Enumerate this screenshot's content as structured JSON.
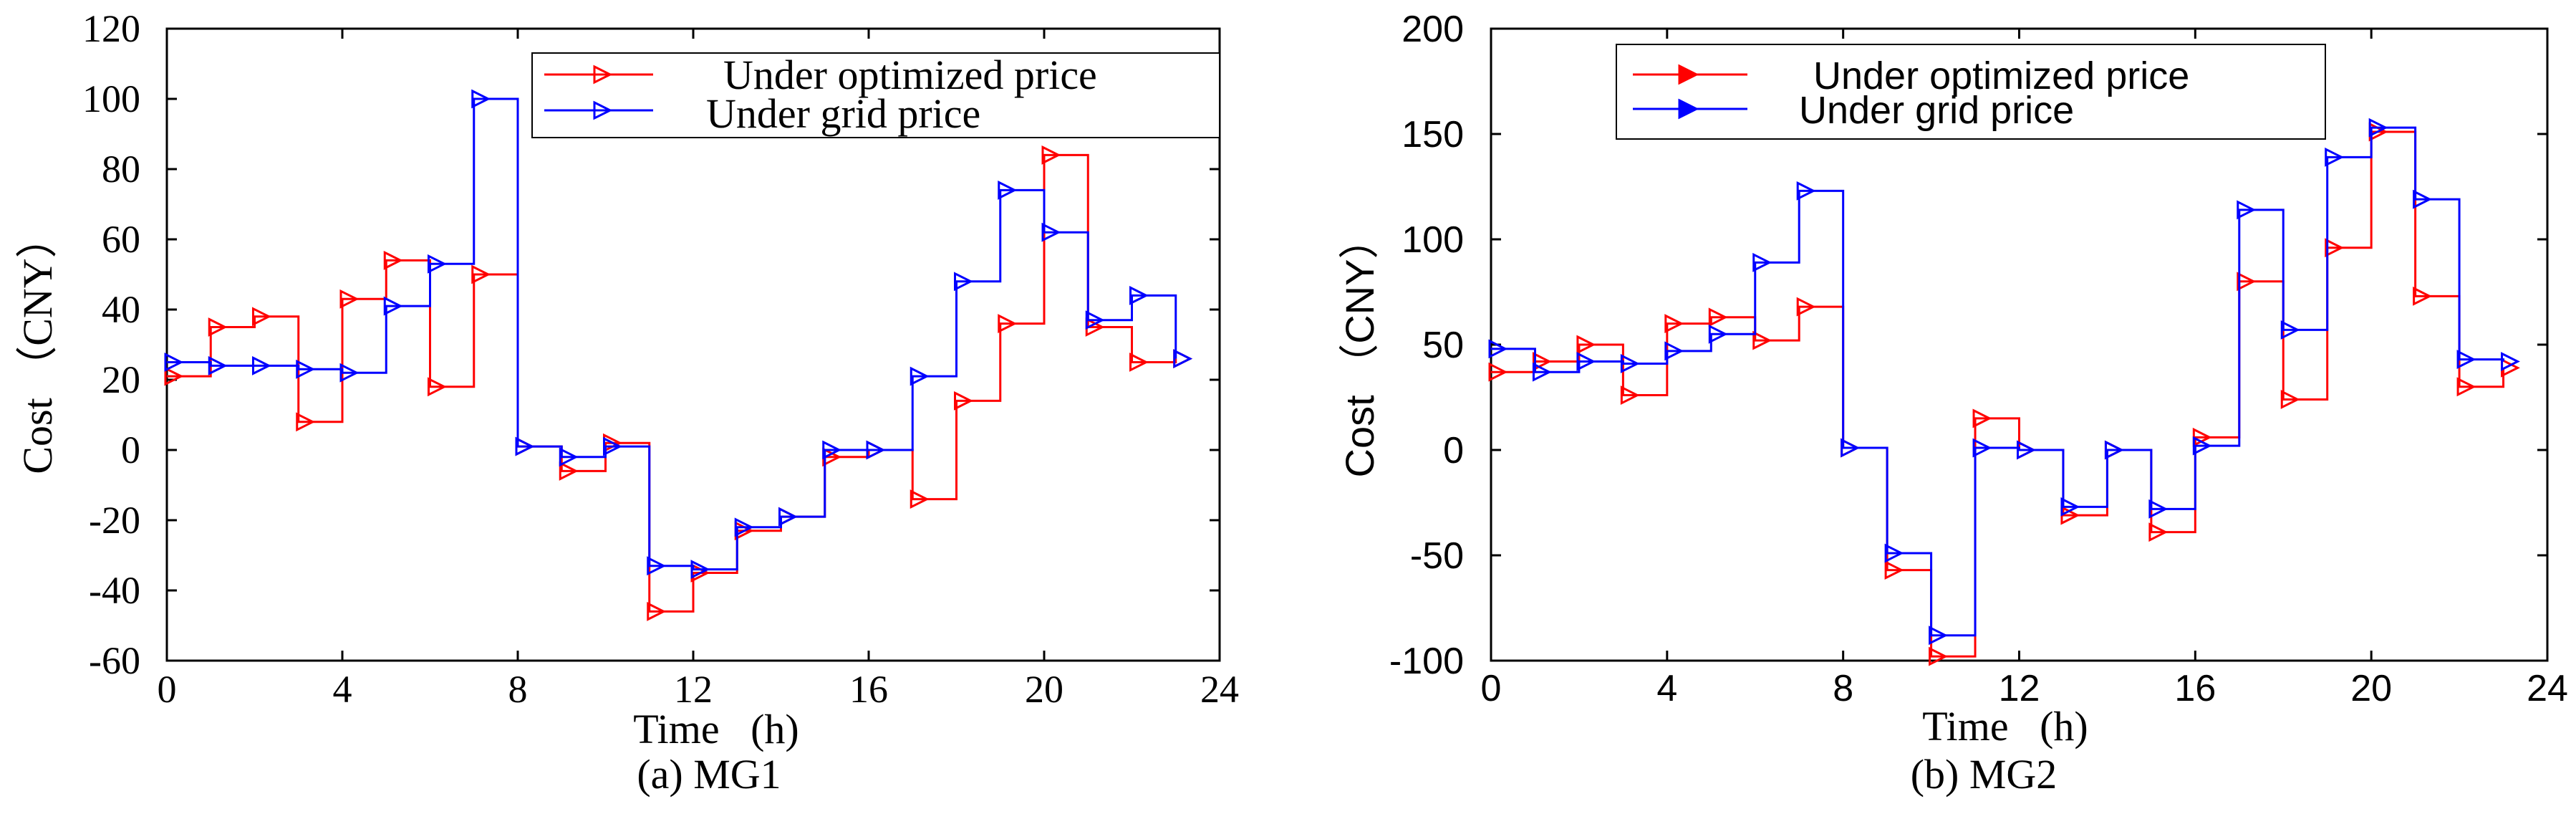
{
  "colors": {
    "optimized": "#ff0000",
    "grid": "#0000ff",
    "axis": "#000000",
    "background": "#ffffff"
  },
  "chart_data": [
    {
      "type": "line",
      "step": true,
      "marker": "triangle-right",
      "title": "(a) MG1",
      "xlabel": "Time   (h)",
      "ylabel": "Cost （CNY）",
      "xlim": [
        0,
        24
      ],
      "ylim": [
        -60,
        120
      ],
      "xticks": [
        0,
        4,
        8,
        12,
        16,
        20,
        24
      ],
      "yticks": [
        -60,
        -40,
        -20,
        0,
        20,
        40,
        60,
        80,
        100,
        120
      ],
      "xtick_labels": [
        "0",
        "4",
        "8",
        "12",
        "16",
        "20",
        "24"
      ],
      "ytick_labels": [
        "-60",
        "-40",
        "-20",
        "0",
        "20",
        "40",
        "60",
        "80",
        "100",
        "120"
      ],
      "legend_position": "top-right",
      "x": [
        0,
        1,
        2,
        3,
        4,
        5,
        6,
        7,
        8,
        9,
        10,
        11,
        12,
        13,
        14,
        15,
        16,
        17,
        18,
        19,
        20,
        21,
        22,
        23
      ],
      "series": [
        {
          "name": "Under optimized price",
          "color": "#ff0000",
          "values": [
            21,
            35,
            38,
            8,
            43,
            54,
            18,
            50,
            1,
            -6,
            2,
            -46,
            -35,
            -23,
            -19,
            -2,
            0,
            -14,
            14,
            36,
            84,
            35,
            25,
            26
          ]
        },
        {
          "name": "Under grid price",
          "color": "#0000ff",
          "values": [
            25,
            24,
            24,
            23,
            22,
            41,
            53,
            100,
            1,
            -2,
            1,
            -33,
            -34,
            -22,
            -19,
            0,
            0,
            21,
            48,
            74,
            62,
            37,
            44,
            26
          ]
        }
      ]
    },
    {
      "type": "line",
      "step": true,
      "marker": "triangle-right",
      "title": "(b) MG2",
      "xlabel": "Time   (h)",
      "ylabel": "Cost （CNY）",
      "xlim": [
        0,
        24
      ],
      "ylim": [
        -100,
        200
      ],
      "xticks": [
        0,
        4,
        8,
        12,
        16,
        20,
        24
      ],
      "yticks": [
        -100,
        -50,
        0,
        50,
        100,
        150,
        200
      ],
      "xtick_labels": [
        "0",
        "4",
        "8",
        "12",
        "16",
        "20",
        "24"
      ],
      "ytick_labels": [
        "-100",
        "-50",
        "0",
        "50",
        "100",
        "150",
        "200"
      ],
      "legend_position": "top-right",
      "x": [
        0,
        1,
        2,
        3,
        4,
        5,
        6,
        7,
        8,
        9,
        10,
        11,
        12,
        13,
        14,
        15,
        16,
        17,
        18,
        19,
        20,
        21,
        22,
        23
      ],
      "series": [
        {
          "name": "Under optimized price",
          "color": "#ff0000",
          "values": [
            37,
            42,
            50,
            26,
            60,
            63,
            52,
            68,
            1,
            -57,
            -98,
            15,
            0,
            -31,
            0,
            -39,
            6,
            80,
            24,
            96,
            151,
            73,
            30,
            39
          ]
        },
        {
          "name": "Under grid price",
          "color": "#0000ff",
          "values": [
            48,
            37,
            42,
            41,
            47,
            55,
            89,
            123,
            1,
            -49,
            -88,
            1,
            0,
            -27,
            0,
            -28,
            2,
            114,
            57,
            139,
            153,
            119,
            43,
            42
          ]
        }
      ]
    }
  ]
}
